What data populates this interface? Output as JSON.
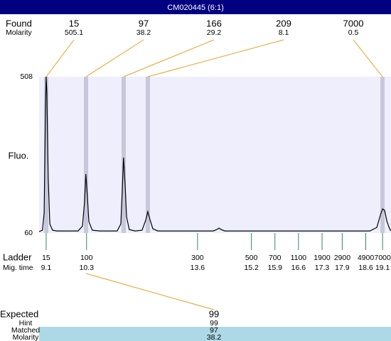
{
  "header": {
    "title": "CM020445 (6:1)"
  },
  "found": {
    "label": "Found",
    "molarity_label": "Molarity",
    "sizes": [
      15,
      97,
      166,
      209,
      7000
    ],
    "molarity": [
      505.1,
      38.2,
      29.2,
      8.1,
      0.5
    ]
  },
  "chart_data": {
    "type": "line",
    "y_label": "Fluo.",
    "color": "#000000",
    "x": [
      8.89,
      8.99,
      9.04,
      9.08,
      9.1,
      9.12,
      9.16,
      9.21,
      9.29,
      9.42,
      10.05,
      10.18,
      10.24,
      10.28,
      10.33,
      10.37,
      10.47,
      10.69,
      11.21,
      11.32,
      11.36,
      11.4,
      11.45,
      11.49,
      11.57,
      11.74,
      11.95,
      12.06,
      12.12,
      12.19,
      12.27,
      12.42,
      14.07,
      14.17,
      14.24,
      14.3,
      14.41,
      18.72,
      18.93,
      19.04,
      19.1,
      19.16,
      19.23,
      19.31,
      19.35
    ],
    "values": [
      64,
      68,
      117,
      422,
      508,
      463,
      219,
      86,
      68,
      66,
      66,
      80,
      148,
      229,
      158,
      93,
      68,
      66,
      66,
      86,
      178,
      276,
      194,
      107,
      70,
      66,
      68,
      97,
      121,
      97,
      72,
      66,
      66,
      70,
      74,
      70,
      66,
      66,
      76,
      113,
      129,
      125,
      93,
      72,
      66
    ],
    "xlim": [
      8.89,
      19.35
    ],
    "ylim": [
      60,
      508
    ],
    "yticks": [
      60,
      508
    ]
  },
  "ladder": {
    "label": "Ladder",
    "time_label": "Mig. time",
    "sizes": [
      15,
      100,
      300,
      500,
      700,
      1100,
      1900,
      2900,
      4900,
      7000
    ],
    "times": [
      9.1,
      10.3,
      13.6,
      15.2,
      15.9,
      16.6,
      17.3,
      17.9,
      18.6,
      19.1
    ]
  },
  "expected": {
    "labels": [
      "Expected",
      "Hint",
      "Matched",
      "Molarity"
    ],
    "values": [
      99,
      99,
      97,
      38.2
    ]
  }
}
